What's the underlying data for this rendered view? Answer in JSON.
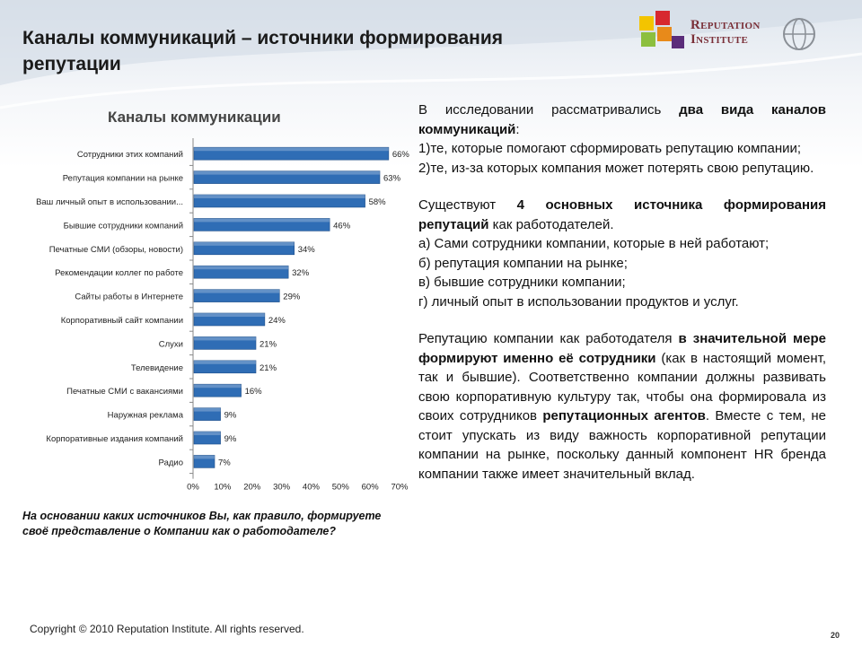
{
  "slide": {
    "title_line1": "Каналы коммуникаций – источники формирования",
    "title_line2": "репутации",
    "logo_line1": "Reputation",
    "logo_line2": "Institute",
    "question": "На основании каких источников Вы, как правило, формируете своё представление о Компании как о работодателе?",
    "copyright": "Copyright © 2010 Reputation Institute. All rights reserved.",
    "page_number": "20"
  },
  "body": {
    "p1_a": "В исследовании рассматривались ",
    "p1_b": "два вида каналов коммуникаций",
    "p1_c": ":",
    "p2": "1)те, которые помогают сформировать репутацию компании;",
    "p3": "2)те, из-за которых компания может потерять свою репутацию.",
    "p4_a": "Существуют ",
    "p4_b": "4 основных источника формирования репутаций",
    "p4_c": " как работодателей.",
    "p5": "а) Сами сотрудники компании, которые в ней работают;",
    "p6": "б) репутация компании на рынке;",
    "p7": "в) бывшие сотрудники компании;",
    "p8": "г) личный опыт в использовании продуктов и услуг.",
    "p9_a": "Репутацию компании как работодателя ",
    "p9_b": "в значительной мере формируют именно её сотрудники",
    "p9_c": " (как в настоящий момент, так и бывшие). Соответственно компании должны развивать свою корпоративную культуру так, чтобы она формировала из своих сотрудников ",
    "p9_d": "репутационных агентов",
    "p9_e": ". Вместе с тем, не стоит упускать из виду важность корпоративной репутации компании на рынке, поскольку данный компонент HR бренда компании также имеет значительный вклад."
  },
  "chart_data": {
    "type": "bar",
    "orientation": "horizontal",
    "title": "Каналы коммуникации",
    "categories": [
      "Сотрудники этих компаний",
      "Репутация компании на рынке",
      "Ваш личный опыт в использовании...",
      "Бывшие сотрудники компаний",
      "Печатные СМИ (обзоры, новости)",
      "Рекомендации коллег по работе",
      "Сайты работы в Интернете",
      "Корпоративный сайт компании",
      "Слухи",
      "Телевидение",
      "Печатные СМИ с вакансиями",
      "Наружная реклама",
      "Корпоративные издания компаний",
      "Радио"
    ],
    "values": [
      66,
      63,
      58,
      46,
      34,
      32,
      29,
      24,
      21,
      21,
      16,
      9,
      9,
      7
    ],
    "value_labels": [
      "66%",
      "63%",
      "58%",
      "46%",
      "34%",
      "32%",
      "29%",
      "24%",
      "21%",
      "21%",
      "16%",
      "9%",
      "9%",
      "7%"
    ],
    "xlim": [
      0,
      70
    ],
    "xticks": [
      "0%",
      "10%",
      "20%",
      "30%",
      "40%",
      "50%",
      "60%",
      "70%"
    ],
    "bar_color": "#2f6db5",
    "grid": false,
    "legend": "none"
  }
}
